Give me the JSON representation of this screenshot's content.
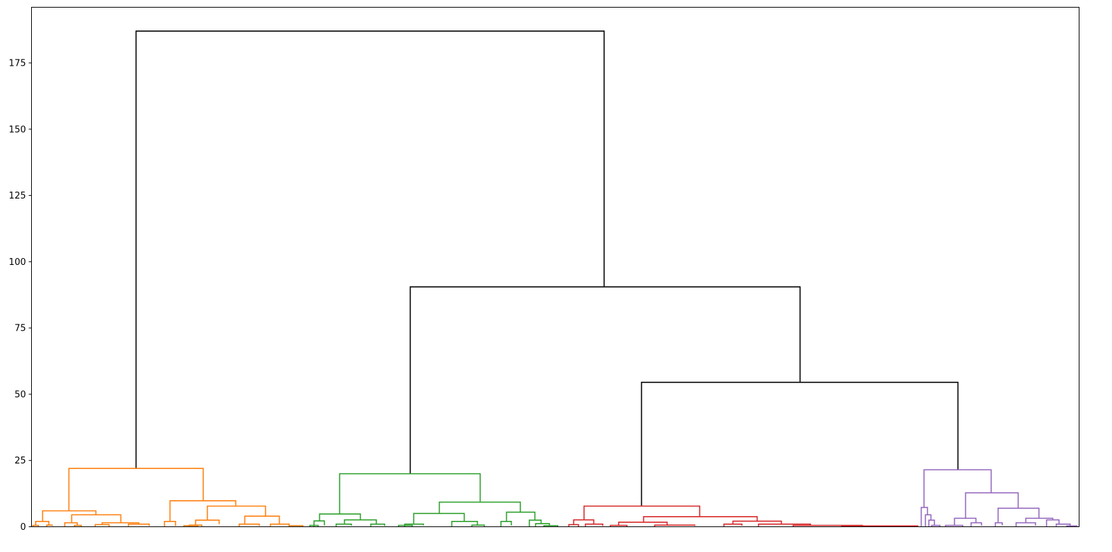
{
  "chart_data": {
    "type": "dendrogram",
    "title": "",
    "xlabel": "",
    "ylabel": "",
    "xlim": [
      0,
      1513
    ],
    "ylim": [
      0,
      196
    ],
    "grid": false,
    "yticks": [
      0,
      25,
      50,
      75,
      100,
      125,
      150,
      175
    ],
    "ytick_labels": [
      "0",
      "25",
      "50",
      "75",
      "100",
      "125",
      "150",
      "175"
    ],
    "colors": {
      "C1": "#ff7f0e",
      "C2": "#2ca02c",
      "C3": "#d62728",
      "C4": "#9467bd",
      "above": "#000000"
    },
    "links": [
      [
        151,
        827,
        22,
        187,
        90.5,
        "above"
      ],
      [
        547,
        1110,
        20,
        90.5,
        54.5,
        "above"
      ],
      [
        881,
        1338,
        7.8,
        54.5,
        21.5,
        "above"
      ],
      [
        54,
        248,
        6,
        22,
        9.8,
        "C1"
      ],
      [
        16,
        93,
        2,
        6,
        4.5,
        "C1"
      ],
      [
        6,
        25,
        0.5,
        2,
        0.6,
        "C1"
      ],
      [
        2,
        10,
        0,
        0.5,
        0,
        "C1"
      ],
      [
        22,
        30,
        0,
        0.6,
        0.3,
        "C1"
      ],
      [
        58,
        129,
        1.5,
        4.5,
        1.5,
        "C1"
      ],
      [
        48,
        66,
        0,
        1.5,
        0.5,
        "C1"
      ],
      [
        62,
        72,
        0,
        0.5,
        0,
        "C1"
      ],
      [
        102,
        155,
        0.8,
        1.5,
        1,
        "C1"
      ],
      [
        92,
        112,
        0,
        0.8,
        0,
        "C1"
      ],
      [
        140,
        170,
        0,
        1,
        0.3,
        "C1"
      ],
      [
        200,
        295,
        2,
        9.8,
        7.8,
        "C1"
      ],
      [
        192,
        208,
        0,
        2,
        0.3,
        "C1"
      ],
      [
        220,
        240,
        0,
        0.4,
        0,
        "C1"
      ],
      [
        254,
        338,
        2.5,
        7.8,
        4,
        "C1"
      ],
      [
        237,
        271,
        0.6,
        2.5,
        1,
        "C1"
      ],
      [
        228,
        246,
        0,
        0.6,
        0,
        "C1"
      ],
      [
        308,
        358,
        1,
        4,
        1,
        "C1"
      ],
      [
        300,
        329,
        0,
        1,
        0.3,
        "C1"
      ],
      [
        345,
        372,
        0,
        1,
        0.4,
        "C1"
      ],
      [
        372,
        392,
        0,
        0.4,
        0,
        "C1"
      ],
      [
        445,
        648,
        4.8,
        20,
        9.3,
        "C2"
      ],
      [
        416,
        475,
        2.2,
        4.8,
        2.6,
        "C2"
      ],
      [
        408,
        423,
        0,
        2.2,
        0.5,
        "C2"
      ],
      [
        402,
        414,
        0,
        0.5,
        0,
        "C2"
      ],
      [
        452,
        498,
        1,
        2.6,
        1,
        "C2"
      ],
      [
        440,
        462,
        0,
        1,
        0.4,
        "C2"
      ],
      [
        490,
        510,
        0,
        1,
        0.3,
        "C2"
      ],
      [
        589,
        706,
        5,
        9.3,
        5.5,
        "C2"
      ],
      [
        552,
        625,
        1,
        5,
        2,
        "C2"
      ],
      [
        539,
        566,
        0,
        1,
        0.5,
        "C2"
      ],
      [
        530,
        550,
        0,
        0.5,
        0,
        "C2"
      ],
      [
        607,
        644,
        0,
        2,
        0.6,
        "C2"
      ],
      [
        636,
        654,
        0,
        0.6,
        0,
        "C2"
      ],
      [
        686,
        727,
        2,
        5.5,
        2.5,
        "C2"
      ],
      [
        678,
        693,
        0,
        2,
        0.5,
        "C2"
      ],
      [
        719,
        736,
        0,
        2.5,
        1.2,
        "C2"
      ],
      [
        728,
        748,
        0,
        1.2,
        0.4,
        "C2"
      ],
      [
        740,
        760,
        0,
        0.4,
        0,
        "C2"
      ],
      [
        798,
        965,
        2.6,
        7.8,
        3.8,
        "C3"
      ],
      [
        783,
        812,
        0.8,
        2.6,
        1,
        "C3"
      ],
      [
        776,
        790,
        0,
        0.8,
        0,
        "C3"
      ],
      [
        800,
        825,
        0,
        1,
        0.3,
        "C3"
      ],
      [
        884,
        1048,
        1.7,
        3.8,
        2.1,
        "C3"
      ],
      [
        848,
        918,
        0.5,
        1.7,
        0.6,
        "C3"
      ],
      [
        836,
        860,
        0,
        0.5,
        0,
        "C3"
      ],
      [
        900,
        958,
        0,
        0.6,
        0.3,
        "C3"
      ],
      [
        1013,
        1083,
        1,
        2.1,
        1,
        "C3"
      ],
      [
        1000,
        1026,
        0,
        1,
        0.4,
        "C3"
      ],
      [
        1050,
        1125,
        0,
        1,
        0.5,
        "C3"
      ],
      [
        1100,
        1200,
        0,
        0.5,
        0.3,
        "C3"
      ],
      [
        1170,
        1280,
        0,
        0.3,
        0,
        "C3"
      ],
      [
        1289,
        1386,
        7.3,
        21.5,
        12.8,
        "C4"
      ],
      [
        1285,
        1294,
        0,
        7.3,
        4.5,
        "C4"
      ],
      [
        1291,
        1299,
        0,
        4.5,
        2.5,
        "C4"
      ],
      [
        1296,
        1304,
        0,
        2.5,
        0.5,
        "C4"
      ],
      [
        1300,
        1312,
        0,
        0.5,
        0,
        "C4"
      ],
      [
        1349,
        1425,
        3.2,
        12.8,
        7,
        "C4"
      ],
      [
        1333,
        1364,
        0.5,
        3.2,
        1.5,
        "C4"
      ],
      [
        1320,
        1345,
        0,
        0.5,
        0,
        "C4"
      ],
      [
        1357,
        1372,
        0,
        1.5,
        0.4,
        "C4"
      ],
      [
        1396,
        1455,
        1.5,
        7,
        3.2,
        "C4"
      ],
      [
        1392,
        1402,
        0,
        1.5,
        0.5,
        "C4"
      ],
      [
        1436,
        1475,
        1.5,
        3.2,
        2.6,
        "C4"
      ],
      [
        1422,
        1450,
        0,
        1.5,
        0.4,
        "C4"
      ],
      [
        1466,
        1484,
        0,
        2.6,
        1,
        "C4"
      ],
      [
        1480,
        1500,
        0,
        1,
        0.3,
        "C4"
      ],
      [
        1495,
        1510,
        0,
        0.3,
        0,
        "C4"
      ]
    ]
  }
}
